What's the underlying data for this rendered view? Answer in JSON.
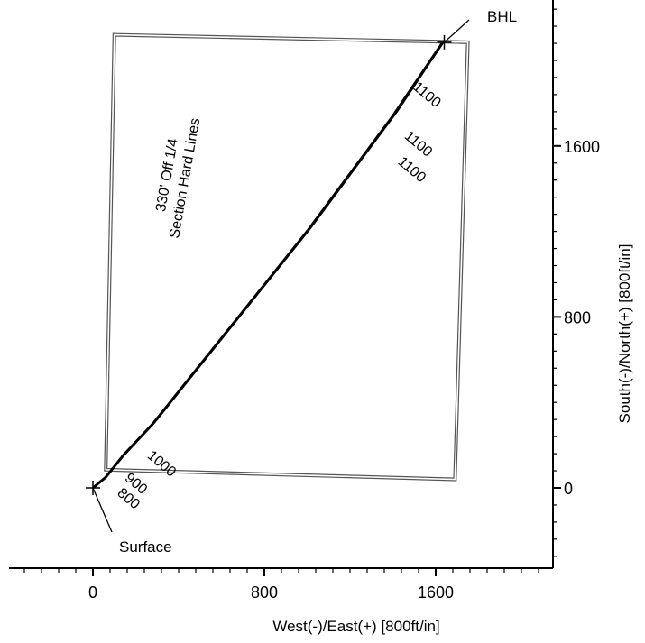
{
  "chart_data": {
    "type": "line",
    "title": "",
    "xlabel": "West(-)/East(+) [800ft/in]",
    "ylabel": "South(-)/North(+) [800ft/in]",
    "xlim": [
      -400,
      2250
    ],
    "ylim": [
      -400,
      2400
    ],
    "x_ticks": [
      0,
      800,
      1600
    ],
    "y_ticks": [
      0,
      800,
      1600
    ],
    "x_tick_labels": [
      "0",
      "800",
      "1600"
    ],
    "y_tick_labels": [
      "0",
      "800",
      "1600"
    ],
    "grid": false,
    "series": [
      {
        "name": "",
        "x": [
          0,
          60,
          140,
          280,
          600,
          1000,
          1400,
          1630
        ],
        "y": [
          0,
          50,
          150,
          300,
          700,
          1200,
          1740,
          2080
        ]
      },
      {
        "name": "",
        "x": [
          0,
          70,
          150,
          300,
          620,
          1020,
          1420,
          1640
        ],
        "y": [
          0,
          60,
          160,
          320,
          720,
          1220,
          1760,
          2090
        ]
      }
    ],
    "hard_lines_box": {
      "label_line1": "330' Off 1/4",
      "label_line2": "Section Hard Lines",
      "corners": [
        [
          100,
          2120
        ],
        [
          1750,
          2085
        ],
        [
          1690,
          40
        ],
        [
          60,
          85
        ]
      ]
    },
    "md_labels": [
      {
        "text": "800",
        "x": 110,
        "y": -30
      },
      {
        "text": "900",
        "x": 145,
        "y": 40
      },
      {
        "text": "1000",
        "x": 250,
        "y": 145
      },
      {
        "text": "1100",
        "x": 1490,
        "y": 1870
      },
      {
        "text": "1100",
        "x": 1450,
        "y": 1640
      },
      {
        "text": "1100",
        "x": 1420,
        "y": 1520
      }
    ],
    "callouts": [
      {
        "text": "Surface",
        "x": 0,
        "y": 0
      },
      {
        "text": "BHL",
        "x": 1640,
        "y": 2085
      }
    ]
  }
}
